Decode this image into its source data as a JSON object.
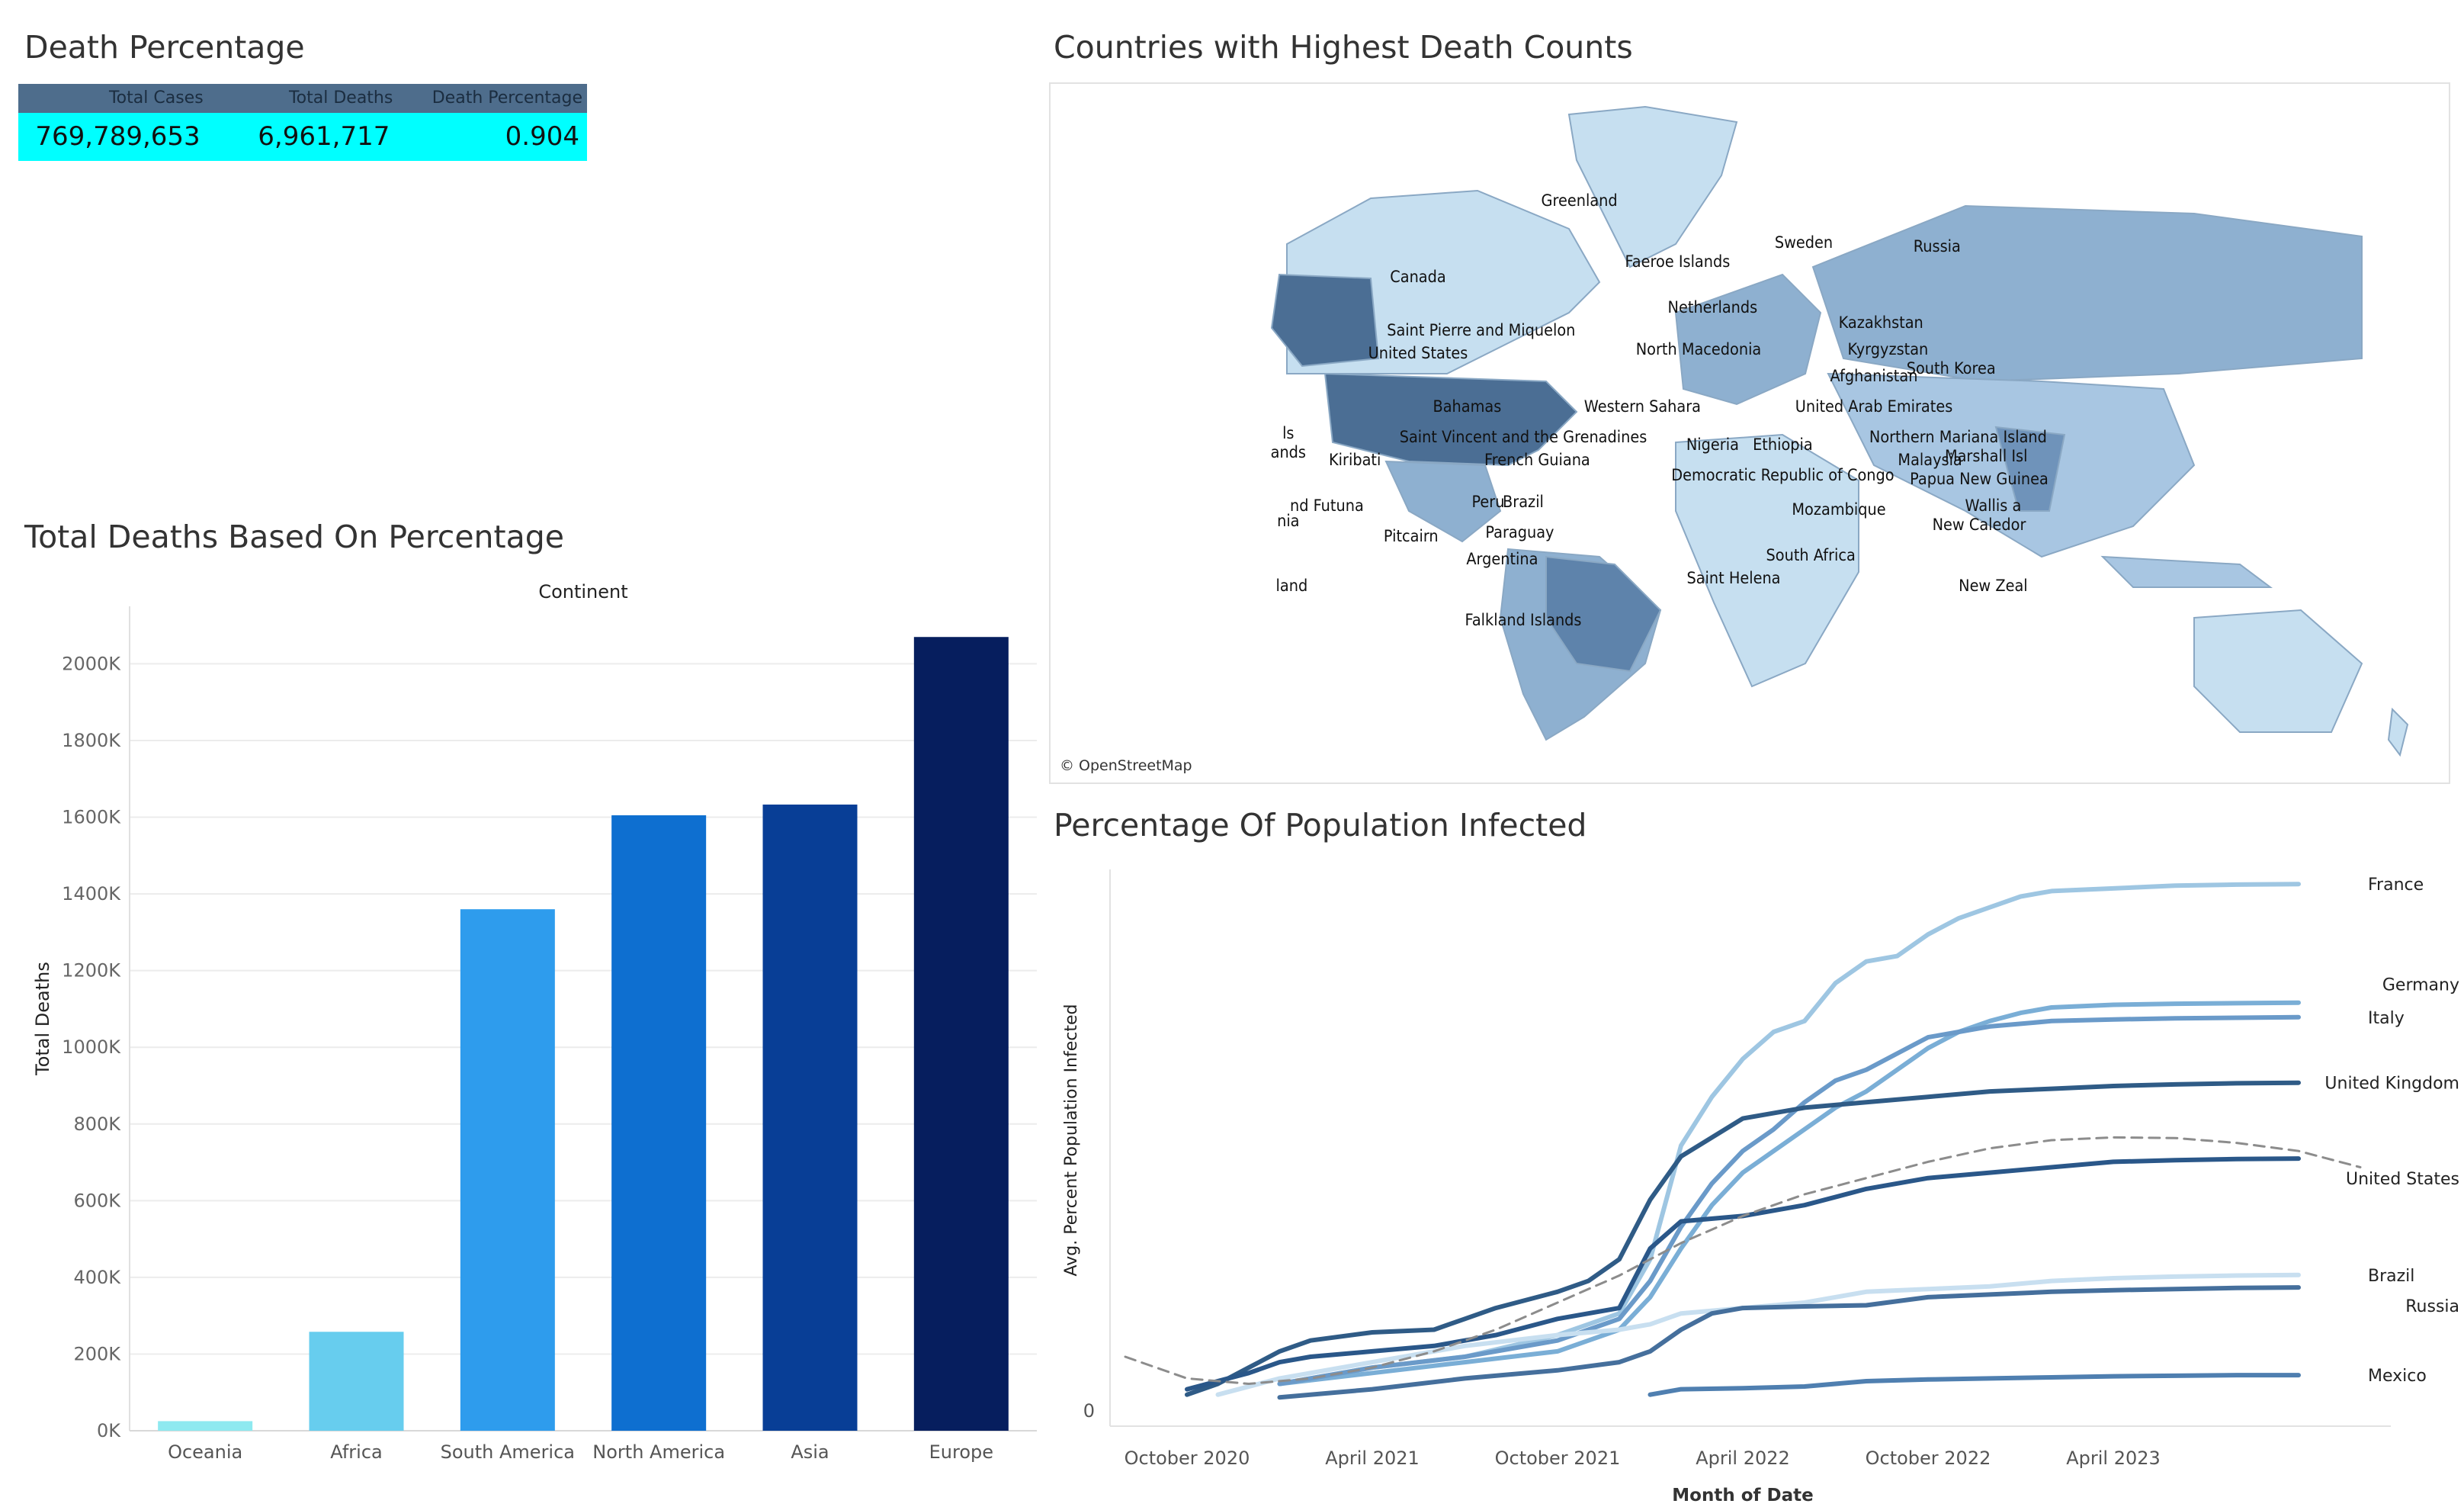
{
  "death_percentage": {
    "title": "Death Percentage",
    "headers": [
      "Total Cases",
      "Total Deaths",
      "Death Percentage"
    ],
    "values": [
      "769,789,653",
      "6,961,717",
      "0.904"
    ],
    "highlight_color": "#00ffff",
    "header_color": "#4e6d8c"
  },
  "map": {
    "title": "Countries with Highest Death Counts",
    "attribution": "© OpenStreetMap",
    "labels": [
      "Greenland",
      "Sweden",
      "Faeroe Islands",
      "Russia",
      "Canada",
      "Netherlands",
      "Kazakhstan",
      "Saint Pierre and Miquelon",
      "United States",
      "North Macedonia",
      "Kyrgyzstan",
      "Afghanistan",
      "South Korea",
      "Bahamas",
      "Western Sahara",
      "United Arab Emirates",
      "Northern Mariana Island",
      "Saint Vincent and the Grenadines",
      "Kiribati",
      "Nigeria",
      "Ethiopia",
      "Marshall Isl",
      "French Guiana",
      "Malaysia",
      "Democratic Republic of Congo",
      "Papua New Guinea",
      "Brazil",
      "Peru",
      "Mozambique",
      "Wallis a",
      "nd Futuna",
      "New Caledor",
      "Paraguay",
      "Pitcairn",
      "Argentina",
      "South Africa",
      "Saint Helena",
      "land",
      "New Zeal",
      "Falkland Islands",
      "ls",
      "ands",
      "nia"
    ]
  },
  "bar_panel": {
    "title": "Total Deaths Based On Percentage"
  },
  "line_panel": {
    "title": "Percentage Of Population Infected"
  },
  "chart_data": [
    {
      "type": "bar",
      "title": "Total Deaths Based On Percentage",
      "column_header": "Continent",
      "xlabel": "",
      "ylabel": "Total Deaths",
      "categories": [
        "Oceania",
        "Africa",
        "South America",
        "North America",
        "Asia",
        "Europe"
      ],
      "values": [
        25000,
        258000,
        1360000,
        1605000,
        1633000,
        2070000
      ],
      "colors": [
        "#8ee9f0",
        "#67cdee",
        "#2e9ced",
        "#0e6fd0",
        "#083e96",
        "#061e5e"
      ],
      "ylim": [
        0,
        2150000
      ],
      "yticks": [
        0,
        200000,
        400000,
        600000,
        800000,
        1000000,
        1200000,
        1400000,
        1600000,
        1800000,
        2000000
      ],
      "ytick_labels": [
        "0K",
        "200K",
        "400K",
        "600K",
        "800K",
        "1000K",
        "1200K",
        "1400K",
        "1600K",
        "1800K",
        "2000K"
      ],
      "grid": true
    },
    {
      "type": "line",
      "title": "Percentage Of Population Infected",
      "xlabel": "Month of Date",
      "ylabel": "Avg. Percent Population Infected",
      "x_ticks": [
        "2020-10",
        "2021-04",
        "2021-10",
        "2022-04",
        "2022-10",
        "2023-04"
      ],
      "x_tick_labels": [
        "October 2020",
        "April 2021",
        "October 2021",
        "April 2022",
        "October 2022",
        "April 2023"
      ],
      "xlim": [
        "2020-08",
        "2023-12"
      ],
      "y_tick_labels": [
        "0"
      ],
      "ylim": [
        0,
        100
      ],
      "series": [
        {
          "name": "France",
          "color": "#9ec6e2",
          "x": [
            "2021-01",
            "2021-04",
            "2021-07",
            "2021-10",
            "2021-11",
            "2021-12",
            "2022-01",
            "2022-02",
            "2022-03",
            "2022-04",
            "2022-05",
            "2022-06",
            "2022-07",
            "2022-08",
            "2022-09",
            "2022-10",
            "2022-11",
            "2022-12",
            "2023-01",
            "2023-02",
            "2023-04",
            "2023-06",
            "2023-08",
            "2023-10"
          ],
          "y": [
            5,
            8,
            10,
            14,
            16,
            18,
            28,
            49,
            58,
            65,
            70,
            72,
            79,
            83,
            84,
            88,
            91,
            93,
            95,
            96,
            96.5,
            97,
            97.2,
            97.3
          ]
        },
        {
          "name": "Germany",
          "color": "#7aaed6",
          "x": [
            "2021-01",
            "2021-04",
            "2021-07",
            "2021-10",
            "2021-11",
            "2021-12",
            "2022-01",
            "2022-02",
            "2022-03",
            "2022-04",
            "2022-05",
            "2022-06",
            "2022-07",
            "2022-08",
            "2022-09",
            "2022-10",
            "2022-11",
            "2022-12",
            "2023-01",
            "2023-02",
            "2023-04",
            "2023-06",
            "2023-08",
            "2023-10"
          ],
          "y": [
            5,
            7,
            9,
            11,
            13,
            15,
            21,
            30,
            38,
            44,
            48,
            52,
            56,
            59,
            63,
            67,
            70,
            72,
            73.5,
            74.5,
            75,
            75.2,
            75.3,
            75.4
          ]
        },
        {
          "name": "Italy",
          "color": "#6a9ac9",
          "x": [
            "2021-01",
            "2021-04",
            "2021-07",
            "2021-10",
            "2021-11",
            "2021-12",
            "2022-01",
            "2022-02",
            "2022-03",
            "2022-04",
            "2022-05",
            "2022-06",
            "2022-07",
            "2022-08",
            "2022-09",
            "2022-10",
            "2022-11",
            "2022-12",
            "2023-01",
            "2023-02",
            "2023-04",
            "2023-06",
            "2023-08",
            "2023-10"
          ],
          "y": [
            5,
            8,
            10,
            13,
            15,
            17,
            24,
            34,
            42,
            48,
            52,
            57,
            61,
            63,
            66,
            69,
            70,
            71,
            71.5,
            72,
            72.3,
            72.5,
            72.6,
            72.7
          ]
        },
        {
          "name": "United Kingdom",
          "color": "#2f5b86",
          "x": [
            "2020-10",
            "2020-11",
            "2020-12",
            "2021-01",
            "2021-02",
            "2021-04",
            "2021-06",
            "2021-07",
            "2021-08",
            "2021-10",
            "2021-11",
            "2021-12",
            "2022-01",
            "2022-02",
            "2022-04",
            "2022-06",
            "2022-08",
            "2022-10",
            "2022-12",
            "2023-02",
            "2023-04",
            "2023-06",
            "2023-08",
            "2023-10"
          ],
          "y": [
            3,
            5,
            8,
            11,
            13,
            14.5,
            15,
            17,
            19,
            22,
            24,
            28,
            39,
            47,
            54,
            56,
            57,
            58,
            59,
            59.5,
            60,
            60.3,
            60.5,
            60.6
          ]
        },
        {
          "name": "United States",
          "color": "#2a5789",
          "x": [
            "2020-10",
            "2020-12",
            "2021-01",
            "2021-02",
            "2021-04",
            "2021-06",
            "2021-08",
            "2021-10",
            "2021-11",
            "2021-12",
            "2022-01",
            "2022-02",
            "2022-04",
            "2022-06",
            "2022-08",
            "2022-10",
            "2022-12",
            "2023-02",
            "2023-04",
            "2023-06",
            "2023-08",
            "2023-10"
          ],
          "y": [
            4,
            7,
            9,
            10,
            11,
            12,
            14,
            17,
            18,
            19,
            30,
            35,
            36,
            38,
            41,
            43,
            44,
            45,
            46,
            46.3,
            46.5,
            46.6
          ]
        },
        {
          "name": "Brazil",
          "color": "#c8dff0",
          "x": [
            "2020-11",
            "2021-01",
            "2021-04",
            "2021-07",
            "2021-10",
            "2021-12",
            "2022-01",
            "2022-02",
            "2022-04",
            "2022-06",
            "2022-08",
            "2022-10",
            "2022-12",
            "2023-02",
            "2023-04",
            "2023-06",
            "2023-08",
            "2023-10"
          ],
          "y": [
            3,
            6,
            9,
            12,
            14,
            15,
            16,
            18,
            19,
            20,
            22,
            22.5,
            23,
            24,
            24.5,
            24.8,
            25,
            25.1
          ]
        },
        {
          "name": "Russia",
          "color": "#456f9c",
          "x": [
            "2021-01",
            "2021-04",
            "2021-07",
            "2021-10",
            "2021-12",
            "2022-01",
            "2022-02",
            "2022-03",
            "2022-04",
            "2022-06",
            "2022-08",
            "2022-10",
            "2022-12",
            "2023-02",
            "2023-04",
            "2023-06",
            "2023-08",
            "2023-10"
          ],
          "y": [
            2.5,
            4,
            6,
            7.5,
            9,
            11,
            15,
            18,
            19,
            19.3,
            19.5,
            21,
            21.5,
            22,
            22.3,
            22.5,
            22.7,
            22.8
          ]
        },
        {
          "name": "Mexico",
          "color": "#4f7fb0",
          "x": [
            "2022-01",
            "2022-02",
            "2022-04",
            "2022-06",
            "2022-08",
            "2022-10",
            "2022-12",
            "2023-02",
            "2023-04",
            "2023-06",
            "2023-08",
            "2023-10"
          ],
          "y": [
            3,
            4,
            4.2,
            4.5,
            5.5,
            5.8,
            6,
            6.2,
            6.4,
            6.5,
            6.6,
            6.6
          ]
        },
        {
          "name": "",
          "color": "#8c8c8c",
          "dashed": true,
          "x": [
            "2020-08",
            "2020-10",
            "2020-12",
            "2021-02",
            "2021-04",
            "2021-06",
            "2021-08",
            "2021-10",
            "2021-12",
            "2022-02",
            "2022-04",
            "2022-06",
            "2022-08",
            "2022-10",
            "2022-12",
            "2023-02",
            "2023-04",
            "2023-06",
            "2023-08",
            "2023-10",
            "2023-12"
          ],
          "y": [
            10,
            6,
            5,
            6,
            8,
            11,
            15,
            20,
            25,
            31,
            36,
            40,
            43,
            46,
            48.5,
            50,
            50.5,
            50.4,
            49.5,
            48,
            45
          ]
        }
      ]
    }
  ]
}
